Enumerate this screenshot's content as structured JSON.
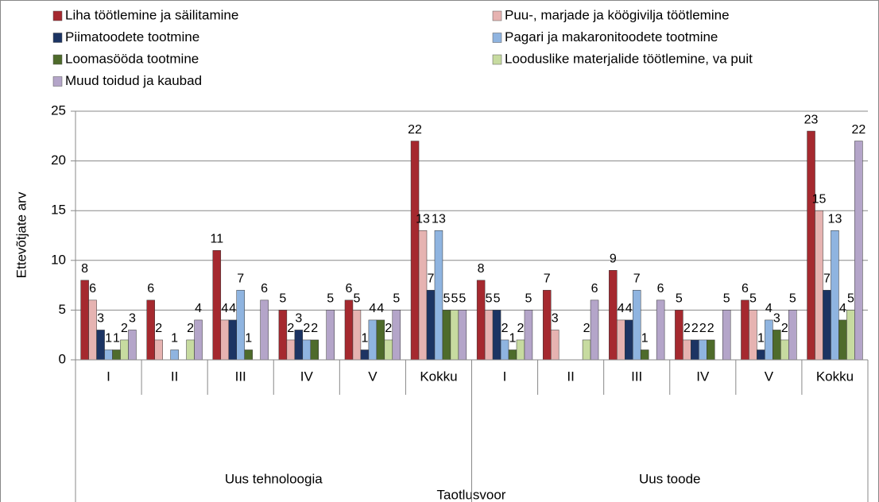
{
  "chart_data": {
    "type": "bar",
    "x_label": "Taotlusvoor",
    "y_label": "Ettevõtjate arv",
    "categories": [
      "I",
      "II",
      "III",
      "IV",
      "V",
      "Kokku",
      "I",
      "II",
      "III",
      "IV",
      "V",
      "Kokku"
    ],
    "category_groups": [
      "Uus tehnoloogia",
      "Uus toode"
    ],
    "ylim": [
      0,
      25
    ],
    "yticks": [
      0,
      5,
      10,
      15,
      20,
      25
    ],
    "grid": true,
    "legend": "top",
    "series": [
      {
        "name": "Liha töötlemine ja säilitamine",
        "color": "#a5292f",
        "values": [
          8,
          6,
          11,
          5,
          6,
          22,
          8,
          7,
          9,
          5,
          6,
          23
        ]
      },
      {
        "name": "Puu-, marjade ja köögivilja töötlemine",
        "color": "#e6b3b1",
        "values": [
          6,
          2,
          4,
          2,
          5,
          13,
          5,
          3,
          4,
          2,
          5,
          15
        ]
      },
      {
        "name": "Piimatoodete tootmine",
        "color": "#1c3463",
        "values": [
          3,
          null,
          4,
          3,
          1,
          7,
          5,
          null,
          4,
          2,
          1,
          7
        ]
      },
      {
        "name": "Pagari ja makaronitoodete tootmine",
        "color": "#8fb4e0",
        "values": [
          1,
          1,
          7,
          2,
          4,
          13,
          2,
          null,
          7,
          2,
          4,
          13
        ]
      },
      {
        "name": "Loomasööda tootmine",
        "color": "#4e6b2b",
        "values": [
          1,
          null,
          1,
          2,
          4,
          5,
          1,
          null,
          1,
          2,
          3,
          4
        ]
      },
      {
        "name": "Looduslike materjalide töötlemine, va puit",
        "color": "#c7dba0",
        "values": [
          2,
          2,
          null,
          null,
          2,
          5,
          2,
          2,
          null,
          null,
          2,
          5
        ]
      },
      {
        "name": "Muud toidud ja kaubad",
        "color": "#b4a5c9",
        "values": [
          3,
          4,
          6,
          5,
          5,
          5,
          5,
          6,
          6,
          5,
          5,
          22
        ]
      }
    ]
  }
}
